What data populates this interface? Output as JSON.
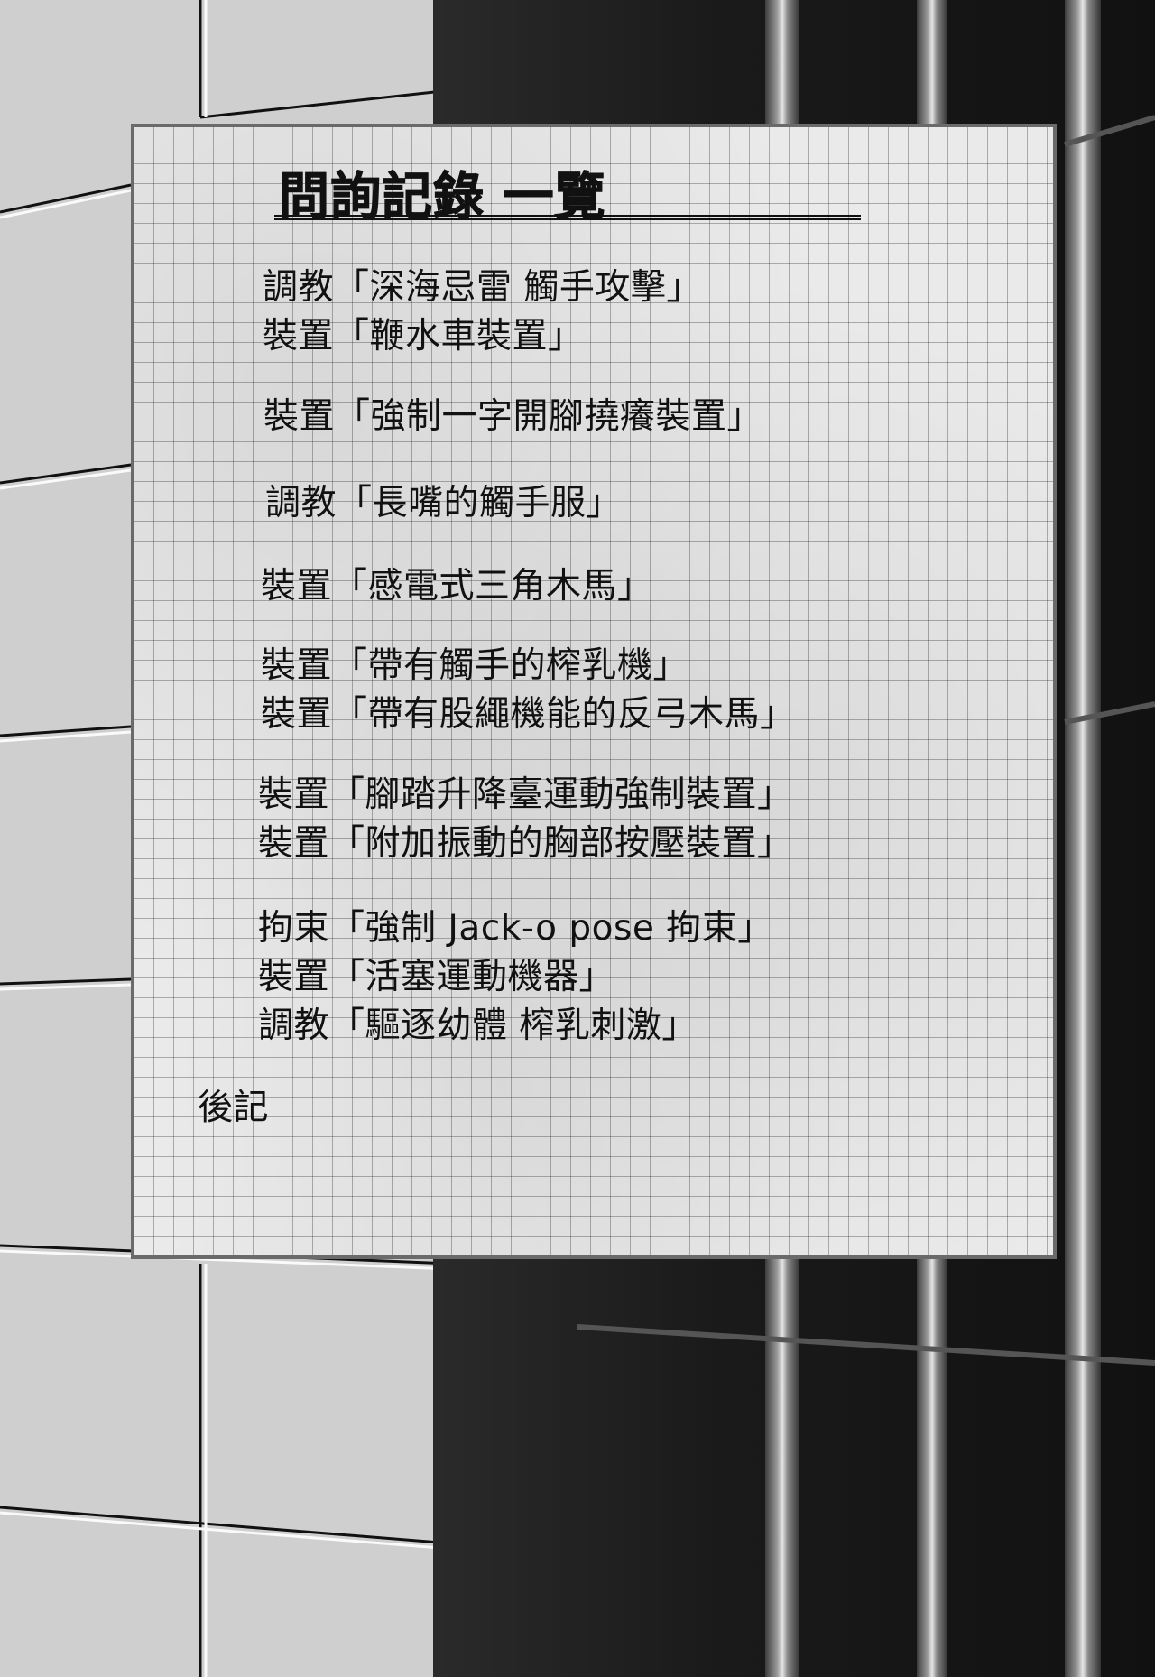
{
  "title": "問詢記錄 一覽",
  "entries": [
    "調教「深海忌雷 觸手攻擊」",
    "裝置「鞭水車裝置」",
    "裝置「強制一字開腳撓癢裝置」",
    "調教「長嘴的觸手服」",
    "裝置「感電式三角木馬」",
    "裝置「帶有觸手的榨乳機」",
    "裝置「帶有股繩機能的反弓木馬」",
    "裝置「腳踏升降臺運動強制裝置」",
    "裝置「附加振動的胸部按壓裝置」",
    "拘束「強制 Jack-o pose 拘束」",
    "裝置「活塞運動機器」",
    "調教「驅逐幼體 榨乳刺激」",
    "後記"
  ],
  "colors": {
    "text": "#111111",
    "panel_border": "#6a6a6a",
    "panel_bg": "#eaeaea",
    "wall_light": "#cfcfcf",
    "wall_dark": "#1a1a1a"
  }
}
